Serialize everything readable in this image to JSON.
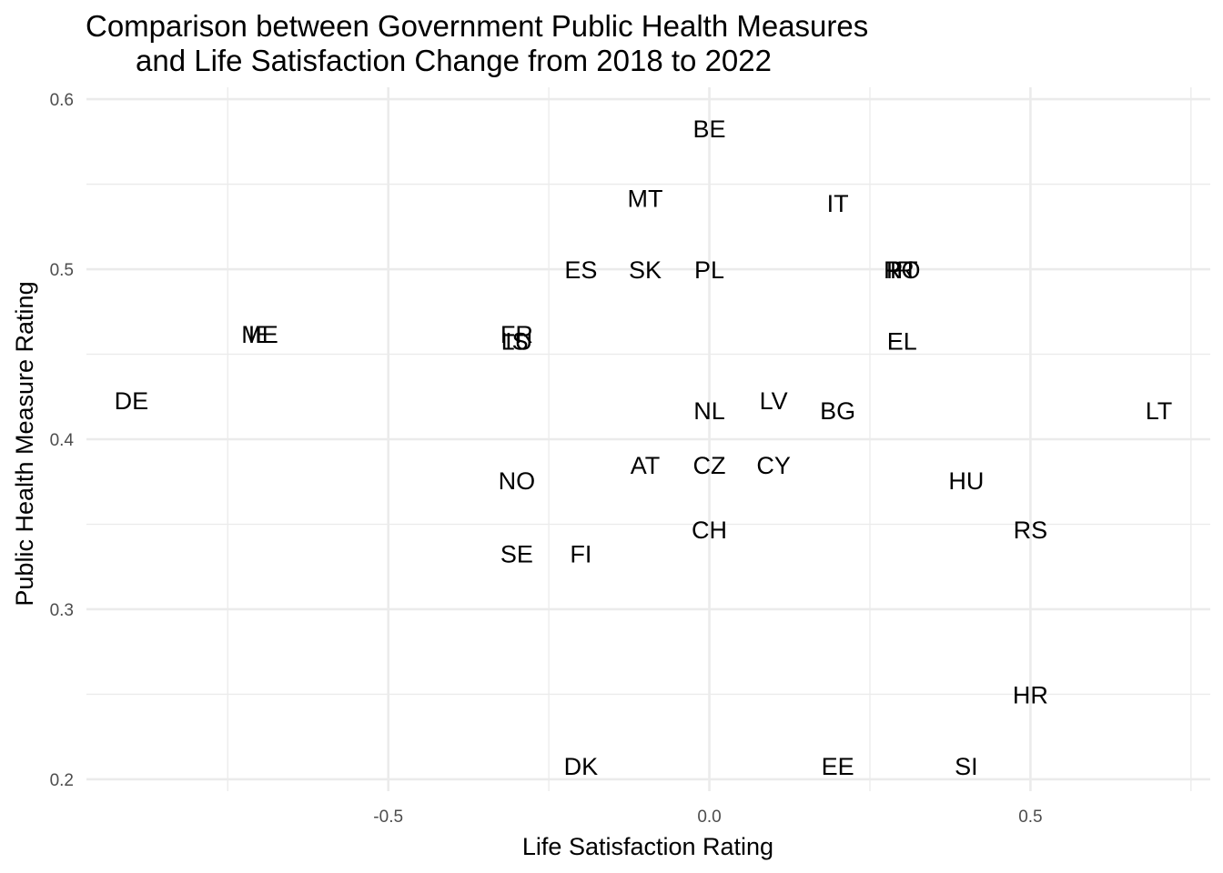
{
  "chart_data": {
    "type": "scatter",
    "title": "Comparison between Government Public Health Measures\n      and Life Satisfaction Change from 2018 to 2022",
    "xlabel": "Life Satisfaction Rating",
    "ylabel": "Public Health Measure Rating",
    "xlim": [
      -0.97,
      0.78
    ],
    "ylim": [
      0.193,
      0.607
    ],
    "x_ticks": [
      -0.5,
      0.0,
      0.5
    ],
    "x_tick_labels": [
      "-0.5",
      "0.0",
      "0.5"
    ],
    "y_ticks": [
      0.2,
      0.3,
      0.4,
      0.5,
      0.6
    ],
    "y_tick_labels": [
      "0.2",
      "0.3",
      "0.4",
      "0.5",
      "0.6"
    ],
    "grid": true,
    "points": [
      {
        "label": "BE",
        "x": 0.0,
        "y": 0.583
      },
      {
        "label": "MT",
        "x": -0.1,
        "y": 0.542
      },
      {
        "label": "IT",
        "x": 0.2,
        "y": 0.539
      },
      {
        "label": "ES",
        "x": -0.2,
        "y": 0.5
      },
      {
        "label": "SK",
        "x": -0.1,
        "y": 0.5
      },
      {
        "label": "PL",
        "x": 0.0,
        "y": 0.5
      },
      {
        "label": "IR",
        "x": 0.3,
        "y": 0.5
      },
      {
        "label": "PT",
        "x": 0.3,
        "y": 0.5
      },
      {
        "label": "RO",
        "x": 0.3,
        "y": 0.5
      },
      {
        "label": "ME",
        "x": -0.7,
        "y": 0.462
      },
      {
        "label": "IE",
        "x": -0.7,
        "y": 0.462
      },
      {
        "label": "FR",
        "x": -0.3,
        "y": 0.462
      },
      {
        "label": "LU",
        "x": -0.3,
        "y": 0.458
      },
      {
        "label": "IS",
        "x": -0.3,
        "y": 0.458
      },
      {
        "label": "EL",
        "x": 0.3,
        "y": 0.458
      },
      {
        "label": "DE",
        "x": -0.9,
        "y": 0.423
      },
      {
        "label": "NL",
        "x": 0.0,
        "y": 0.417
      },
      {
        "label": "LV",
        "x": 0.1,
        "y": 0.423
      },
      {
        "label": "BG",
        "x": 0.2,
        "y": 0.417
      },
      {
        "label": "LT",
        "x": 0.7,
        "y": 0.417
      },
      {
        "label": "AT",
        "x": -0.1,
        "y": 0.385
      },
      {
        "label": "CZ",
        "x": 0.0,
        "y": 0.385
      },
      {
        "label": "CY",
        "x": 0.1,
        "y": 0.385
      },
      {
        "label": "NO",
        "x": -0.3,
        "y": 0.376
      },
      {
        "label": "HU",
        "x": 0.4,
        "y": 0.376
      },
      {
        "label": "CH",
        "x": 0.0,
        "y": 0.347
      },
      {
        "label": "RS",
        "x": 0.5,
        "y": 0.347
      },
      {
        "label": "SE",
        "x": -0.3,
        "y": 0.333
      },
      {
        "label": "FI",
        "x": -0.2,
        "y": 0.333
      },
      {
        "label": "HR",
        "x": 0.5,
        "y": 0.25
      },
      {
        "label": "DK",
        "x": -0.2,
        "y": 0.208
      },
      {
        "label": "EE",
        "x": 0.2,
        "y": 0.208
      },
      {
        "label": "SI",
        "x": 0.4,
        "y": 0.208
      }
    ]
  }
}
